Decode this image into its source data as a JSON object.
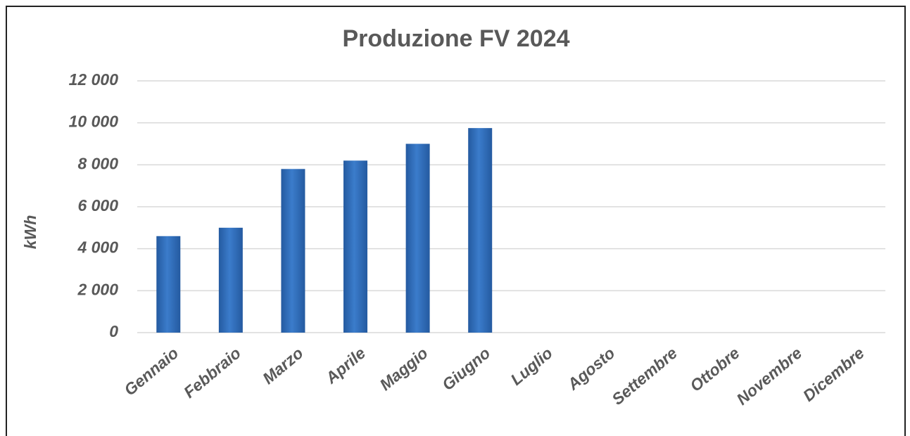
{
  "chart_data": {
    "type": "bar",
    "title": "Produzione FV 2024",
    "y_label": "kWh",
    "categories": [
      "Gennaio",
      "Febbraio",
      "Marzo",
      "Aprile",
      "Maggio",
      "Giugno",
      "Luglio",
      "Agosto",
      "Settembre",
      "Ottobre",
      "Novembre",
      "Dicembre"
    ],
    "values": [
      4600,
      5000,
      7800,
      8200,
      9000,
      9750,
      null,
      null,
      null,
      null,
      null,
      null
    ],
    "color": "#3b7ccb",
    "ylim": [
      0,
      12000
    ],
    "yticks": [
      0,
      {
        "value": 2000,
        "label": "2 000"
      },
      {
        "value": 4000,
        "label": "4 000"
      },
      {
        "value": 6000,
        "label": "6 000"
      },
      {
        "value": 8000,
        "label": "8 000"
      },
      {
        "value": 10000,
        "label": "10 000"
      },
      {
        "value": 12000,
        "label": "12 000"
      }
    ],
    "grid": true
  }
}
